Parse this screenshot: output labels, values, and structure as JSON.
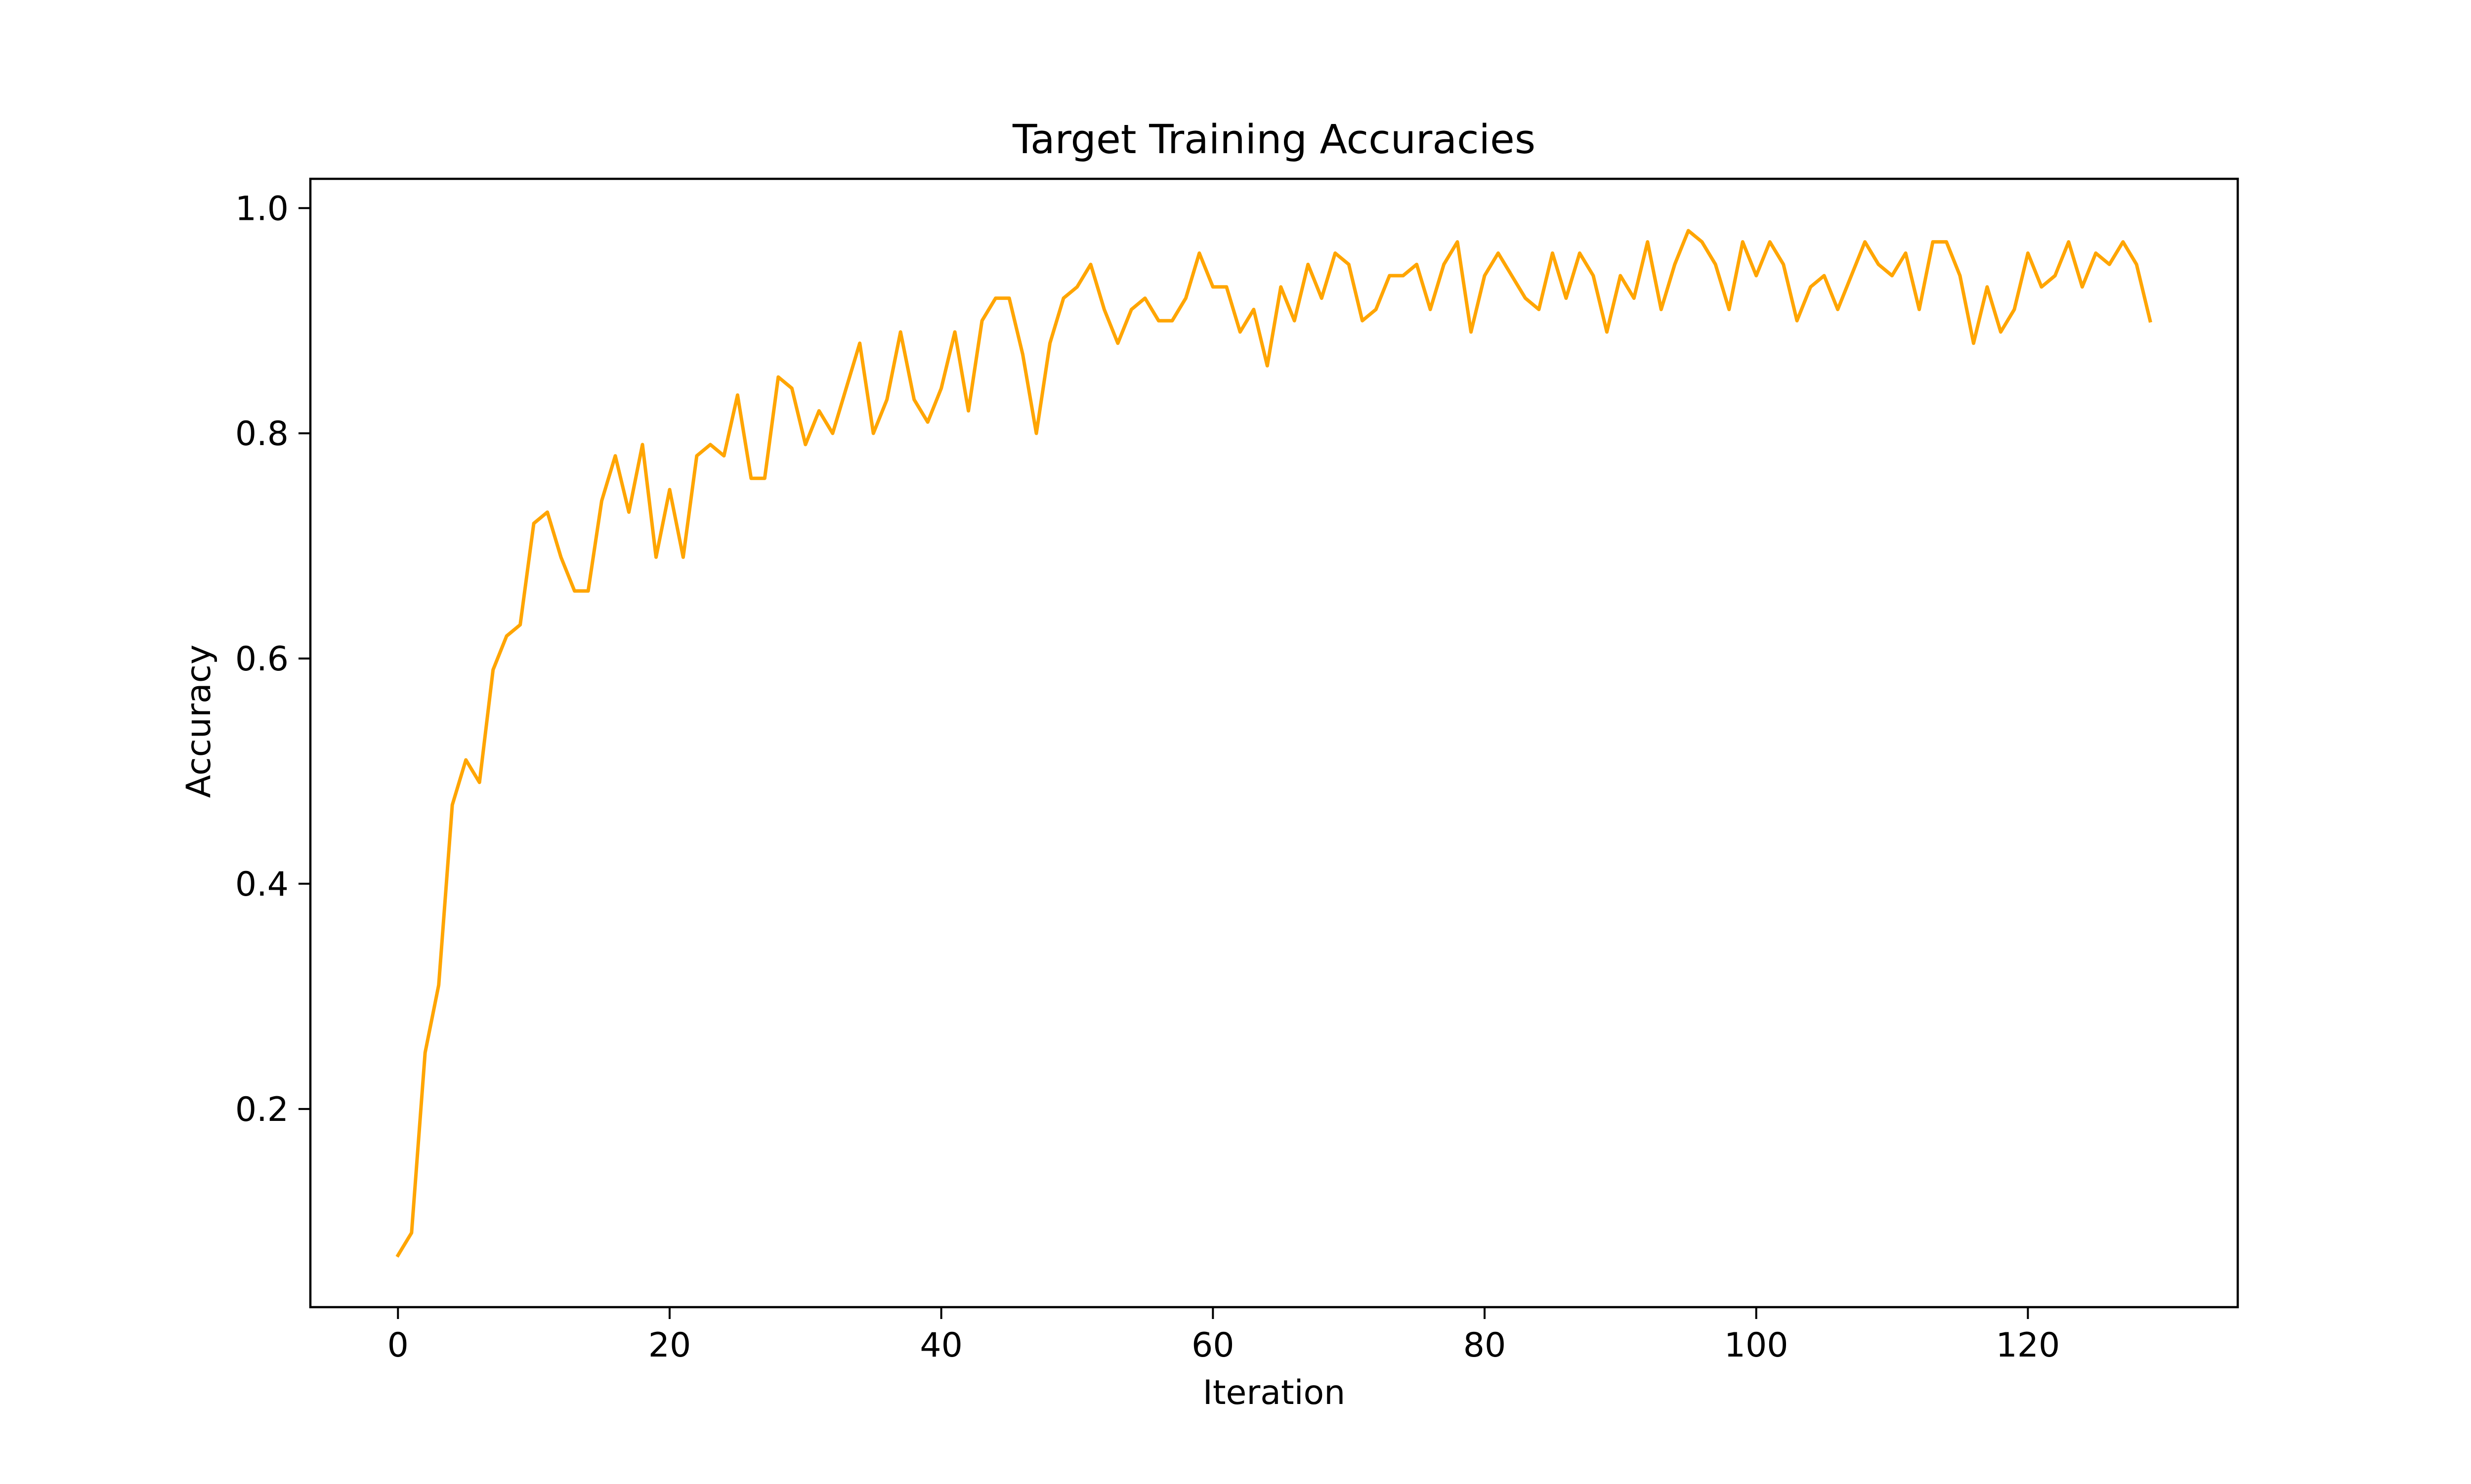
{
  "chart_data": {
    "type": "line",
    "title": "Target Training Accuracies",
    "xlabel": "Iteration",
    "ylabel": "Accuracy",
    "xlim": [
      -6.45,
      135.45
    ],
    "ylim": [
      0.024,
      1.026
    ],
    "xticks": [
      0,
      20,
      40,
      60,
      80,
      100,
      120
    ],
    "yticks": [
      0.2,
      0.4,
      0.6,
      0.8,
      1.0
    ],
    "xtick_labels": [
      "0",
      "20",
      "40",
      "60",
      "80",
      "100",
      "120"
    ],
    "ytick_labels": [
      "0.2",
      "0.4",
      "0.6",
      "0.8",
      "1.0"
    ],
    "grid": false,
    "legend": "none",
    "series": [
      {
        "color": "#ffa500",
        "x": [
          0,
          1,
          2,
          3,
          4,
          5,
          6,
          7,
          8,
          9,
          10,
          11,
          12,
          13,
          14,
          15,
          16,
          17,
          18,
          19,
          20,
          21,
          22,
          23,
          24,
          25,
          26,
          27,
          28,
          29,
          30,
          31,
          32,
          33,
          34,
          35,
          36,
          37,
          38,
          39,
          40,
          41,
          42,
          43,
          44,
          45,
          46,
          47,
          48,
          49,
          50,
          51,
          52,
          53,
          54,
          55,
          56,
          57,
          58,
          59,
          60,
          61,
          62,
          63,
          64,
          65,
          66,
          67,
          68,
          69,
          70,
          71,
          72,
          73,
          74,
          75,
          76,
          77,
          78,
          79,
          80,
          81,
          82,
          83,
          84,
          85,
          86,
          87,
          88,
          89,
          90,
          91,
          92,
          93,
          94,
          95,
          96,
          97,
          98,
          99,
          100,
          101,
          102,
          103,
          104,
          105,
          106,
          107,
          108,
          109,
          110,
          111,
          112,
          113,
          114,
          115,
          116,
          117,
          118,
          119,
          120,
          121,
          122,
          123,
          124,
          125,
          126,
          127,
          128,
          129
        ],
        "values": [
          0.07,
          0.09,
          0.25,
          0.31,
          0.47,
          0.51,
          0.49,
          0.59,
          0.62,
          0.63,
          0.72,
          0.73,
          0.69,
          0.66,
          0.66,
          0.74,
          0.78,
          0.73,
          0.79,
          0.69,
          0.75,
          0.69,
          0.78,
          0.79,
          0.78,
          0.834,
          0.76,
          0.76,
          0.85,
          0.84,
          0.79,
          0.82,
          0.8,
          0.84,
          0.88,
          0.8,
          0.83,
          0.89,
          0.83,
          0.81,
          0.84,
          0.89,
          0.82,
          0.9,
          0.92,
          0.92,
          0.87,
          0.8,
          0.88,
          0.92,
          0.93,
          0.95,
          0.91,
          0.88,
          0.91,
          0.92,
          0.9,
          0.9,
          0.92,
          0.96,
          0.93,
          0.93,
          0.89,
          0.91,
          0.86,
          0.93,
          0.9,
          0.95,
          0.92,
          0.96,
          0.95,
          0.9,
          0.91,
          0.94,
          0.94,
          0.95,
          0.91,
          0.95,
          0.97,
          0.89,
          0.94,
          0.96,
          0.94,
          0.92,
          0.91,
          0.96,
          0.92,
          0.96,
          0.94,
          0.89,
          0.94,
          0.92,
          0.97,
          0.91,
          0.95,
          0.98,
          0.97,
          0.95,
          0.91,
          0.97,
          0.94,
          0.97,
          0.95,
          0.9,
          0.93,
          0.94,
          0.91,
          0.94,
          0.97,
          0.95,
          0.94,
          0.96,
          0.91,
          0.97,
          0.97,
          0.94,
          0.88,
          0.93,
          0.89,
          0.91,
          0.96,
          0.93,
          0.94,
          0.97,
          0.93,
          0.96,
          0.95,
          0.97,
          0.95,
          0.9
        ]
      }
    ]
  }
}
